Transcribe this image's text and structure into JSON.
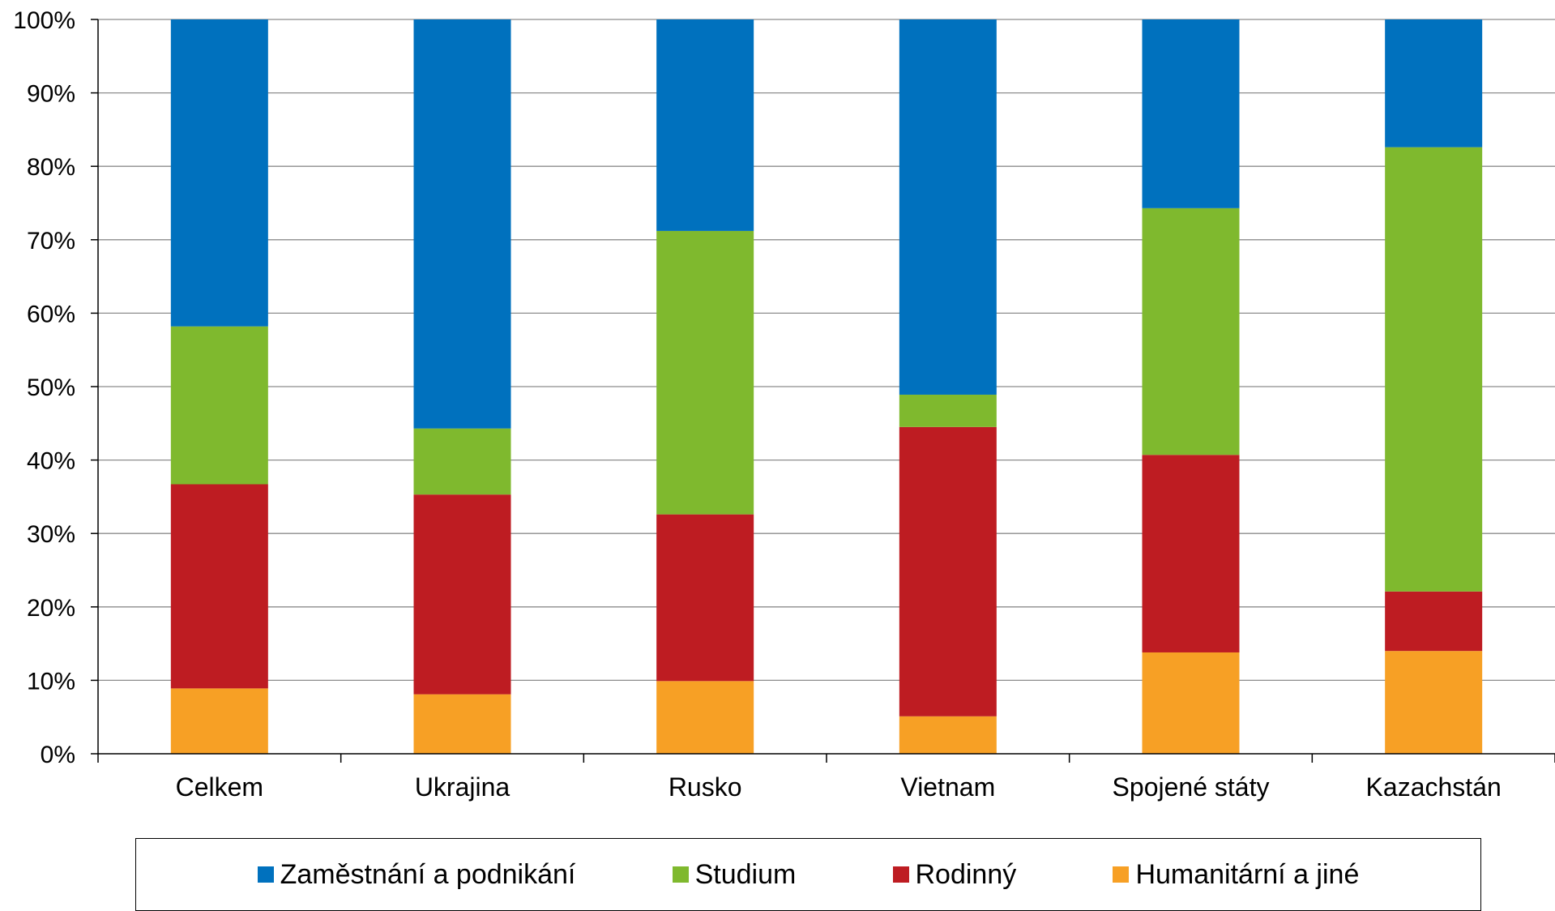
{
  "chart_data": {
    "type": "bar",
    "stacked": true,
    "title": "",
    "xlabel": "",
    "ylabel": "",
    "ylim": [
      0,
      100
    ],
    "y_ticks": [
      "0%",
      "10%",
      "20%",
      "30%",
      "40%",
      "50%",
      "60%",
      "70%",
      "80%",
      "90%",
      "100%"
    ],
    "grid": true,
    "legend_position": "bottom",
    "categories": [
      "Celkem",
      "Ukrajina",
      "Rusko",
      "Vietnam",
      "Spojené státy",
      "Kazachstán"
    ],
    "series": [
      {
        "name": "Humanitární a jiné",
        "color": "#F7A025",
        "values": [
          8.9,
          8.1,
          9.9,
          5.1,
          13.8,
          14.0
        ]
      },
      {
        "name": "Rodinný",
        "color": "#BE1C22",
        "values": [
          27.8,
          27.2,
          22.7,
          39.4,
          26.9,
          8.1
        ]
      },
      {
        "name": "Studium",
        "color": "#7FB92E",
        "values": [
          21.5,
          9.0,
          38.6,
          4.4,
          33.6,
          60.5
        ]
      },
      {
        "name": "Zaměstnání a podnikání",
        "color": "#0071BE",
        "values": [
          41.8,
          55.7,
          28.8,
          51.1,
          25.7,
          17.4
        ]
      }
    ],
    "legend_order": [
      "Zaměstnání a podnikání",
      "Studium",
      "Rodinný",
      "Humanitární a jiné"
    ]
  }
}
